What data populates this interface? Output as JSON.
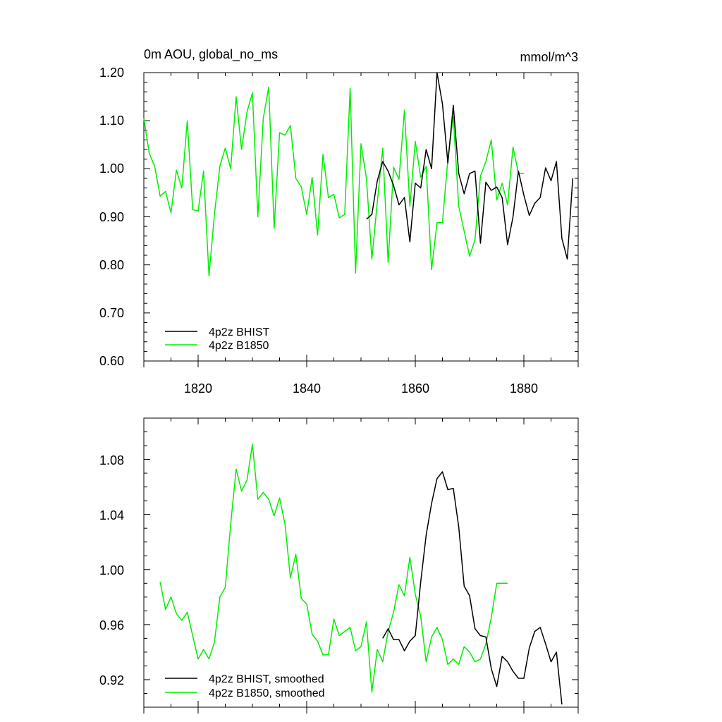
{
  "chart_data": [
    {
      "type": "line",
      "title": "0m AOU, global_no_ms",
      "units": "mmol/m^3",
      "xlim": [
        1810,
        1890
      ],
      "ylim": [
        0.6,
        1.2
      ],
      "x_ticks": [
        "1820",
        "1840",
        "1860",
        "1880"
      ],
      "y_ticks": [
        "0.60",
        "0.70",
        "0.80",
        "0.90",
        "1.00",
        "1.10",
        "1.20"
      ],
      "legend_position": "bottom-left",
      "grid": false,
      "series": [
        {
          "name": "4p2z BHIST",
          "color": "#000000",
          "x": [
            1851,
            1852,
            1853,
            1854,
            1855,
            1856,
            1857,
            1858,
            1859,
            1860,
            1861,
            1862,
            1863,
            1864,
            1865,
            1866,
            1867,
            1868,
            1869,
            1870,
            1871,
            1872,
            1873,
            1874,
            1875,
            1876,
            1877,
            1878,
            1879,
            1880,
            1881,
            1882,
            1883,
            1884,
            1885,
            1886,
            1887,
            1888,
            1889
          ],
          "values": [
            0.895,
            0.905,
            0.975,
            1.015,
            0.995,
            0.965,
            0.925,
            0.94,
            0.848,
            0.97,
            0.96,
            1.04,
            1.0,
            1.2,
            1.135,
            1.012,
            1.132,
            0.99,
            0.948,
            0.99,
            0.995,
            0.845,
            0.972,
            0.955,
            0.962,
            0.94,
            0.842,
            0.9,
            0.995,
            0.945,
            0.903,
            0.928,
            0.94,
            1.002,
            0.975,
            1.015,
            0.855,
            0.812,
            0.98
          ]
        },
        {
          "name": "4p2z B1850",
          "color": "#00ee00",
          "x": [
            1810,
            1811,
            1812,
            1813,
            1814,
            1815,
            1816,
            1817,
            1818,
            1819,
            1820,
            1821,
            1822,
            1823,
            1824,
            1825,
            1826,
            1827,
            1828,
            1829,
            1830,
            1831,
            1832,
            1833,
            1834,
            1835,
            1836,
            1837,
            1838,
            1839,
            1840,
            1841,
            1842,
            1843,
            1844,
            1845,
            1846,
            1847,
            1848,
            1849,
            1850,
            1851,
            1852,
            1853,
            1854,
            1855,
            1856,
            1857,
            1858,
            1859,
            1860,
            1861,
            1862,
            1863,
            1864,
            1865,
            1866,
            1867,
            1868,
            1869,
            1870,
            1871,
            1872,
            1873,
            1874,
            1875,
            1876,
            1877,
            1878,
            1879,
            1880
          ],
          "values": [
            1.105,
            1.032,
            1.005,
            0.943,
            0.953,
            0.908,
            0.997,
            0.96,
            1.1,
            0.915,
            0.912,
            0.995,
            0.777,
            0.905,
            1.005,
            1.043,
            1.0,
            1.15,
            1.04,
            1.118,
            1.158,
            0.9,
            1.105,
            1.17,
            0.876,
            1.075,
            1.07,
            1.09,
            0.98,
            0.962,
            0.905,
            0.982,
            0.862,
            1.03,
            0.94,
            0.947,
            0.898,
            0.905,
            1.167,
            0.783,
            1.052,
            0.98,
            0.812,
            0.93,
            1.043,
            0.805,
            1.003,
            0.978,
            1.122,
            0.922,
            1.057,
            0.982,
            1.005,
            0.79,
            0.888,
            0.888,
            1.02,
            1.108,
            0.922,
            0.87,
            0.818,
            0.852,
            0.985,
            1.015,
            1.06,
            0.935,
            0.97,
            0.925,
            1.045,
            0.99,
            0.99
          ]
        }
      ]
    },
    {
      "type": "line",
      "xlim": [
        1810,
        1890
      ],
      "ylim": [
        0.9,
        1.11
      ],
      "x_ticks": [],
      "y_ticks": [
        "0.92",
        "0.96",
        "1.00",
        "1.04",
        "1.08"
      ],
      "legend_position": "bottom-left",
      "grid": false,
      "series": [
        {
          "name": "4p2z BHIST, smoothed",
          "color": "#000000",
          "x": [
            1854,
            1855,
            1856,
            1857,
            1858,
            1859,
            1860,
            1861,
            1862,
            1863,
            1864,
            1865,
            1866,
            1867,
            1868,
            1869,
            1870,
            1871,
            1872,
            1873,
            1874,
            1875,
            1876,
            1877,
            1878,
            1879,
            1880,
            1881,
            1882,
            1883,
            1884,
            1885,
            1886,
            1887
          ],
          "values": [
            0.95,
            0.957,
            0.949,
            0.949,
            0.941,
            0.948,
            0.952,
            0.991,
            1.025,
            1.048,
            1.066,
            1.071,
            1.058,
            1.059,
            1.031,
            0.988,
            0.981,
            0.957,
            0.952,
            0.951,
            0.928,
            0.915,
            0.937,
            0.933,
            0.926,
            0.921,
            0.921,
            0.943,
            0.955,
            0.958,
            0.946,
            0.933,
            0.94,
            0.902
          ]
        },
        {
          "name": "4p2z B1850, smoothed",
          "color": "#00ee00",
          "x": [
            1813,
            1814,
            1815,
            1816,
            1817,
            1818,
            1819,
            1820,
            1821,
            1822,
            1823,
            1824,
            1825,
            1826,
            1827,
            1828,
            1829,
            1830,
            1831,
            1832,
            1833,
            1834,
            1835,
            1836,
            1837,
            1838,
            1839,
            1840,
            1841,
            1842,
            1843,
            1844,
            1845,
            1846,
            1847,
            1848,
            1849,
            1850,
            1851,
            1852,
            1853,
            1854,
            1855,
            1856,
            1857,
            1858,
            1859,
            1860,
            1861,
            1862,
            1863,
            1864,
            1865,
            1866,
            1867,
            1868,
            1869,
            1870,
            1871,
            1872,
            1873,
            1874,
            1875,
            1876,
            1877
          ],
          "values": [
            0.991,
            0.971,
            0.98,
            0.968,
            0.963,
            0.969,
            0.952,
            0.935,
            0.942,
            0.935,
            0.947,
            0.98,
            0.987,
            1.033,
            1.073,
            1.057,
            1.065,
            1.091,
            1.051,
            1.056,
            1.051,
            1.039,
            1.052,
            1.033,
            0.994,
            1.011,
            0.979,
            0.975,
            0.953,
            0.948,
            0.938,
            0.938,
            0.964,
            0.952,
            0.955,
            0.958,
            0.941,
            0.944,
            0.962,
            0.911,
            0.942,
            0.933,
            0.955,
            0.969,
            0.989,
            0.981,
            1.009,
            0.982,
            0.966,
            0.933,
            0.951,
            0.958,
            0.949,
            0.931,
            0.935,
            0.931,
            0.944,
            0.94,
            0.933,
            0.935,
            0.946,
            0.965,
            0.99,
            0.99,
            0.99
          ]
        }
      ]
    }
  ]
}
